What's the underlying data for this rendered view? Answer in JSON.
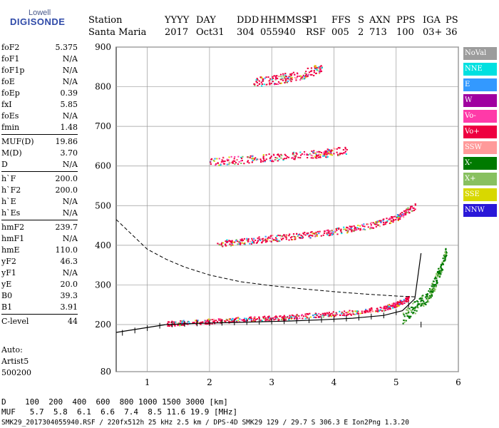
{
  "logo": {
    "top": "Lowell",
    "main": "DIGISONDE"
  },
  "header": {
    "labels": [
      "Station",
      "YYYY",
      "DAY",
      "DDD",
      "HHMMSS",
      "P1",
      "FFS",
      "S",
      "AXN",
      "PPS",
      "IGA",
      "PS"
    ],
    "values": [
      "Santa Maria",
      "2017",
      "Oct31",
      "304",
      "055940",
      "RSF",
      "005",
      "2",
      "713",
      "100",
      "03+",
      "36"
    ]
  },
  "params": {
    "group1": [
      {
        "name": "foF2",
        "value": "5.375"
      },
      {
        "name": "foF1",
        "value": "N/A"
      },
      {
        "name": "foF1p",
        "value": "N/A"
      },
      {
        "name": "foE",
        "value": "N/A"
      },
      {
        "name": "foEp",
        "value": "0.39"
      },
      {
        "name": "fxI",
        "value": "5.85"
      },
      {
        "name": "foEs",
        "value": "N/A"
      },
      {
        "name": "fmin",
        "value": "1.48"
      }
    ],
    "group2": [
      {
        "name": "MUF(D)",
        "value": "19.86"
      },
      {
        "name": "M(D)",
        "value": "3.70"
      },
      {
        "name": "D",
        "value": "N/A"
      }
    ],
    "group3": [
      {
        "name": "h`F",
        "value": "200.0"
      },
      {
        "name": "h`F2",
        "value": "200.0"
      },
      {
        "name": "h`E",
        "value": "N/A"
      },
      {
        "name": "h`Es",
        "value": "N/A"
      }
    ],
    "group4": [
      {
        "name": "hmF2",
        "value": "239.7"
      },
      {
        "name": "hmF1",
        "value": "N/A"
      },
      {
        "name": "hmE",
        "value": "110.0"
      },
      {
        "name": "yF2",
        "value": "46.3"
      },
      {
        "name": "yF1",
        "value": "N/A"
      },
      {
        "name": "yE",
        "value": "20.0"
      },
      {
        "name": "B0",
        "value": "39.3"
      },
      {
        "name": "B1",
        "value": "3.91"
      }
    ],
    "group5": [
      {
        "name": "C-level",
        "value": "44"
      }
    ]
  },
  "auto": {
    "line1": "Auto:",
    "line2": "Artist5",
    "line3": "500200"
  },
  "legend": [
    {
      "label": "NoVal",
      "color": "#9c9c9c"
    },
    {
      "label": "NNE",
      "color": "#00e0e0"
    },
    {
      "label": "E",
      "color": "#3399ff"
    },
    {
      "label": "W",
      "color": "#a000a0"
    },
    {
      "label": "Vo-",
      "color": "#ff3aa8"
    },
    {
      "label": "Vo+",
      "color": "#ee0040"
    },
    {
      "label": "SSW",
      "color": "#ff9a9a"
    },
    {
      "label": "X-",
      "color": "#007a00"
    },
    {
      "label": "X+",
      "color": "#88c060"
    },
    {
      "label": "SSE",
      "color": "#d8d800"
    },
    {
      "label": "NNW",
      "color": "#2a18d8"
    }
  ],
  "bottom": {
    "d_line": "D    100  200  400  600  800 1000 1500 3000 [km]",
    "muf_line": "MUF   5.7  5.8  6.1  6.6  7.4  8.5 11.6 19.9 [MHz]"
  },
  "footer": "SMK29_2017304055940.RSF / 220fx512h 25 kHz 2.5 km / DPS-4D SMK29 129 / 29.7 S 306.3 E Ion2Png 1.3.20",
  "chart_data": {
    "type": "scatter",
    "xlim": [
      0.5,
      6.0
    ],
    "ylim": [
      80,
      900
    ],
    "xticks": [
      1,
      2,
      3,
      4,
      5,
      6
    ],
    "yticks": [
      80,
      200,
      300,
      400,
      500,
      600,
      700,
      800,
      900
    ],
    "grid": true,
    "series": [
      {
        "name": "Vo+",
        "hop": 1,
        "x": [
          1.3,
          1.8,
          2.3,
          2.8,
          3.3,
          3.8,
          4.3,
          4.8,
          5.0,
          5.2
        ],
        "y": [
          203,
          208,
          212,
          216,
          220,
          226,
          232,
          242,
          252,
          268
        ]
      },
      {
        "name": "X-",
        "hop": 1,
        "x": [
          5.1,
          5.3,
          5.5,
          5.6,
          5.7,
          5.8
        ],
        "y": [
          220,
          245,
          270,
          300,
          340,
          385
        ]
      },
      {
        "name": "Vo+",
        "hop": 2,
        "x": [
          2.1,
          2.6,
          3.1,
          3.6,
          4.1,
          4.6,
          5.0,
          5.3
        ],
        "y": [
          405,
          412,
          420,
          428,
          438,
          452,
          470,
          500
        ]
      },
      {
        "name": "Vo+",
        "hop": 3,
        "x": [
          2.0,
          2.6,
          3.2,
          3.8,
          4.2
        ],
        "y": [
          612,
          618,
          625,
          632,
          642
        ]
      },
      {
        "name": "Vo+",
        "hop": 4,
        "x": [
          2.7,
          3.1,
          3.5,
          3.8
        ],
        "y": [
          812,
          820,
          832,
          850
        ]
      }
    ],
    "profile_line": {
      "x": [
        1.3,
        1.8,
        2.3,
        2.8,
        3.3,
        3.8,
        4.3,
        4.8,
        5.1,
        5.3,
        5.4
      ],
      "y": [
        200,
        203,
        205,
        207,
        209,
        212,
        216,
        223,
        235,
        265,
        380
      ]
    },
    "muf_curve": {
      "x": [
        0.5,
        0.8,
        1.0,
        1.3,
        1.6,
        2.0,
        2.5,
        3.0,
        3.5,
        4.0,
        4.5,
        5.0,
        5.3
      ],
      "y": [
        465,
        420,
        390,
        365,
        345,
        325,
        308,
        298,
        290,
        283,
        277,
        272,
        270
      ]
    }
  }
}
